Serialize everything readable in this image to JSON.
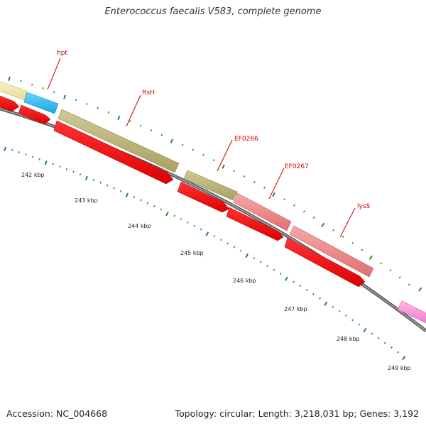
{
  "title": "Enterococcus faecalis V583, complete genome",
  "footer": {
    "accession": "Accession: NC_004668",
    "summary": "Topology: circular; Length: 3,218,031 bp; Genes: 3,192"
  },
  "ruler_labels": [
    "242 kbp",
    "243 kbp",
    "244 kbp",
    "245 kbp",
    "246 kbp",
    "247 kbp",
    "248 kbp",
    "249 kbp"
  ],
  "genes": [
    {
      "name": "hpt",
      "color": "#33bbee"
    },
    {
      "name": "ftsH",
      "color": "#b8b070"
    },
    {
      "name": "EF0266",
      "color": "#b8b070"
    },
    {
      "name": "EF0267",
      "color": "#ee8080"
    },
    {
      "name": "lysS",
      "color": "#ee8080"
    }
  ],
  "colors": {
    "cds": "#ff0000",
    "backbone": "#888888",
    "ticks": "#228b22",
    "label": "#cc0000"
  }
}
